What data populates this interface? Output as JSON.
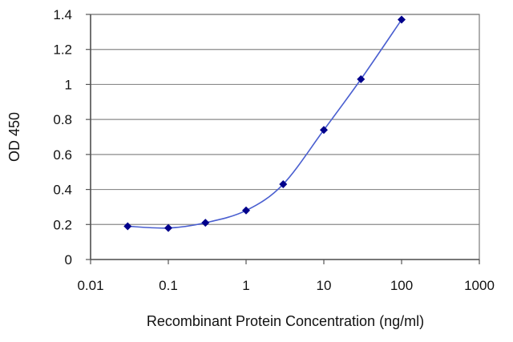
{
  "chart_data": {
    "type": "scatter",
    "title": "",
    "xlabel": "Recombinant Protein Concentration (ng/ml)",
    "ylabel": "OD 450",
    "x_scale": "log",
    "xlim": [
      0.01,
      1000
    ],
    "ylim": [
      0,
      1.4
    ],
    "x_ticks": [
      0.01,
      0.1,
      1,
      10,
      100,
      1000
    ],
    "x_tick_labels": [
      "0.01",
      "0.1",
      "1",
      "10",
      "100",
      "1000"
    ],
    "y_ticks": [
      0,
      0.2,
      0.4,
      0.6,
      0.8,
      1,
      1.2,
      1.4
    ],
    "y_tick_labels": [
      "0",
      "0.2",
      "0.4",
      "0.6",
      "0.8",
      "1",
      "1.2",
      "1.4"
    ],
    "grid": "horizontal",
    "legend": "none",
    "series": [
      {
        "x": [
          0.03,
          0.1,
          0.3,
          1,
          3,
          10,
          30,
          100
        ],
        "y": [
          0.19,
          0.18,
          0.21,
          0.28,
          0.43,
          0.74,
          1.03,
          1.37
        ],
        "color": "#00008B",
        "line_color": "#4a5fd0",
        "marker": "diamond",
        "fit_curve": true
      }
    ]
  }
}
